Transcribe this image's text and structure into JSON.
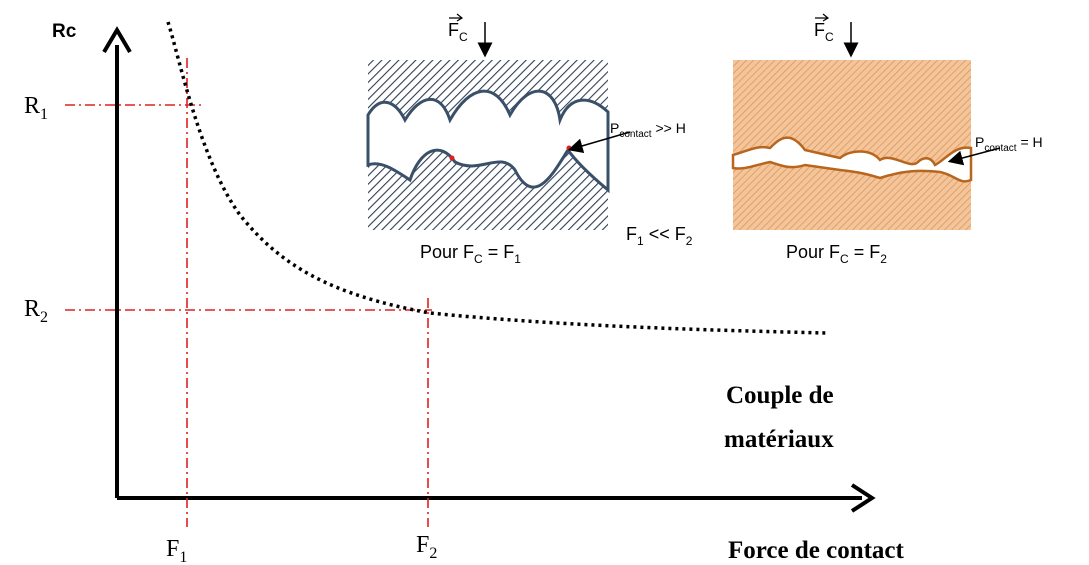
{
  "axes": {
    "y_label": "Rc",
    "x_label": "Force de contact",
    "curve_label": [
      "Couple de",
      "matériaux"
    ]
  },
  "levels": [
    {
      "base": "R",
      "sub": "1"
    },
    {
      "base": "R",
      "sub": "2"
    }
  ],
  "forces": [
    {
      "base": "F",
      "sub": "1"
    },
    {
      "base": "F",
      "sub": "2"
    }
  ],
  "insets": [
    {
      "force": {
        "base": "F",
        "sub": "C"
      },
      "pressure": {
        "base": "P",
        "sub": "contact",
        "rel": " >> H"
      },
      "caption": {
        "pre": "Pour F",
        "sub": "C",
        "mid": " = F",
        "sub2": "1"
      }
    },
    {
      "force": {
        "base": "F",
        "sub": "C"
      },
      "pressure": {
        "base": "P",
        "sub": "contact",
        "rel": " = H"
      },
      "caption": {
        "pre": "Pour F",
        "sub": "C",
        "mid": " = F",
        "sub2": "2"
      }
    }
  ],
  "comparison": {
    "a": "F",
    "a_sub": "1",
    "rel": " << F",
    "b_sub": "2"
  }
}
